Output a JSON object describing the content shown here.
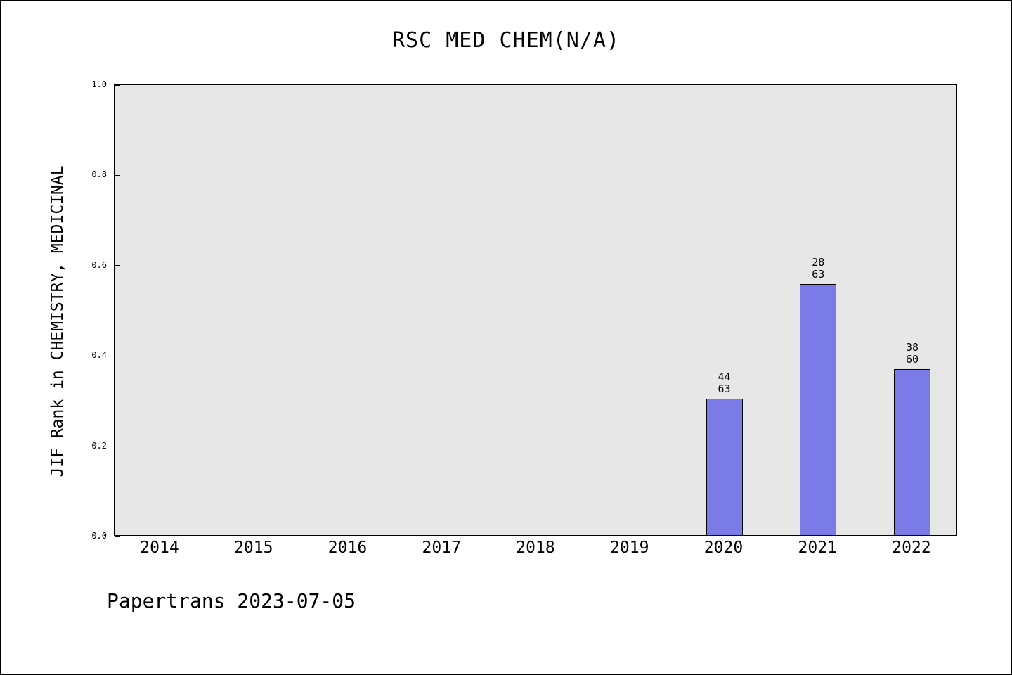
{
  "page": {
    "title": "RSC MED CHEM(N/A)",
    "watermark": "Papertrans 2023-07-05"
  },
  "chart_data": {
    "type": "bar",
    "title": "RSC MED CHEM(N/A)",
    "xlabel": "",
    "ylabel": "JIF Rank in CHEMISTRY, MEDICINAL",
    "categories": [
      "2014",
      "2015",
      "2016",
      "2017",
      "2018",
      "2019",
      "2020",
      "2021",
      "2022"
    ],
    "values": [
      null,
      null,
      null,
      null,
      null,
      null,
      0.302,
      0.556,
      0.367
    ],
    "bars": [
      {
        "category": "2020",
        "rank": "44",
        "total": "63",
        "value": 0.302
      },
      {
        "category": "2021",
        "rank": "28",
        "total": "63",
        "value": 0.556
      },
      {
        "category": "2022",
        "rank": "38",
        "total": "60",
        "value": 0.367
      }
    ],
    "ylim": [
      0,
      1
    ],
    "yticks": [
      "0.0",
      "0.2",
      "0.4",
      "0.6",
      "0.8",
      "1.0"
    ],
    "grid": false,
    "legend": false,
    "annotation": "Papertrans 2023-07-05",
    "colors": {
      "bar_fill": "#7b7be8",
      "bar_border": "#000000",
      "plot_background": "#e7e7e7",
      "page_background": "#ffffff",
      "text": "#000000"
    }
  }
}
